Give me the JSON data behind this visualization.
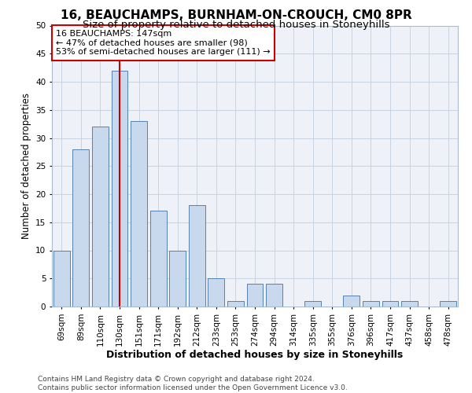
{
  "title": "16, BEAUCHAMPS, BURNHAM-ON-CROUCH, CM0 8PR",
  "subtitle": "Size of property relative to detached houses in Stoneyhills",
  "xlabel": "Distribution of detached houses by size in Stoneyhills",
  "ylabel": "Number of detached properties",
  "categories": [
    "69sqm",
    "89sqm",
    "110sqm",
    "130sqm",
    "151sqm",
    "171sqm",
    "192sqm",
    "212sqm",
    "233sqm",
    "253sqm",
    "274sqm",
    "294sqm",
    "314sqm",
    "335sqm",
    "355sqm",
    "376sqm",
    "396sqm",
    "417sqm",
    "437sqm",
    "458sqm",
    "478sqm"
  ],
  "values": [
    10,
    28,
    32,
    42,
    33,
    17,
    10,
    18,
    5,
    1,
    4,
    4,
    0,
    1,
    0,
    2,
    1,
    1,
    1,
    0,
    1
  ],
  "bar_color": "#c9d9ed",
  "bar_edge_color": "#5580b0",
  "vline_index": 3,
  "vline_color": "#cc0000",
  "annotation_text": "16 BEAUCHAMPS: 147sqm\n← 47% of detached houses are smaller (98)\n53% of semi-detached houses are larger (111) →",
  "annotation_box_facecolor": "#ffffff",
  "annotation_box_edgecolor": "#cc0000",
  "ylim": [
    0,
    50
  ],
  "yticks": [
    0,
    5,
    10,
    15,
    20,
    25,
    30,
    35,
    40,
    45,
    50
  ],
  "grid_color": "#c8d4e0",
  "footer": "Contains HM Land Registry data © Crown copyright and database right 2024.\nContains public sector information licensed under the Open Government Licence v3.0.",
  "bg_color": "#ffffff",
  "plot_bg_color": "#eef2f8",
  "title_fontsize": 11,
  "subtitle_fontsize": 9.5,
  "ylabel_fontsize": 8.5,
  "xlabel_fontsize": 9,
  "tick_fontsize": 7.5,
  "annotation_fontsize": 8,
  "footer_fontsize": 6.5
}
